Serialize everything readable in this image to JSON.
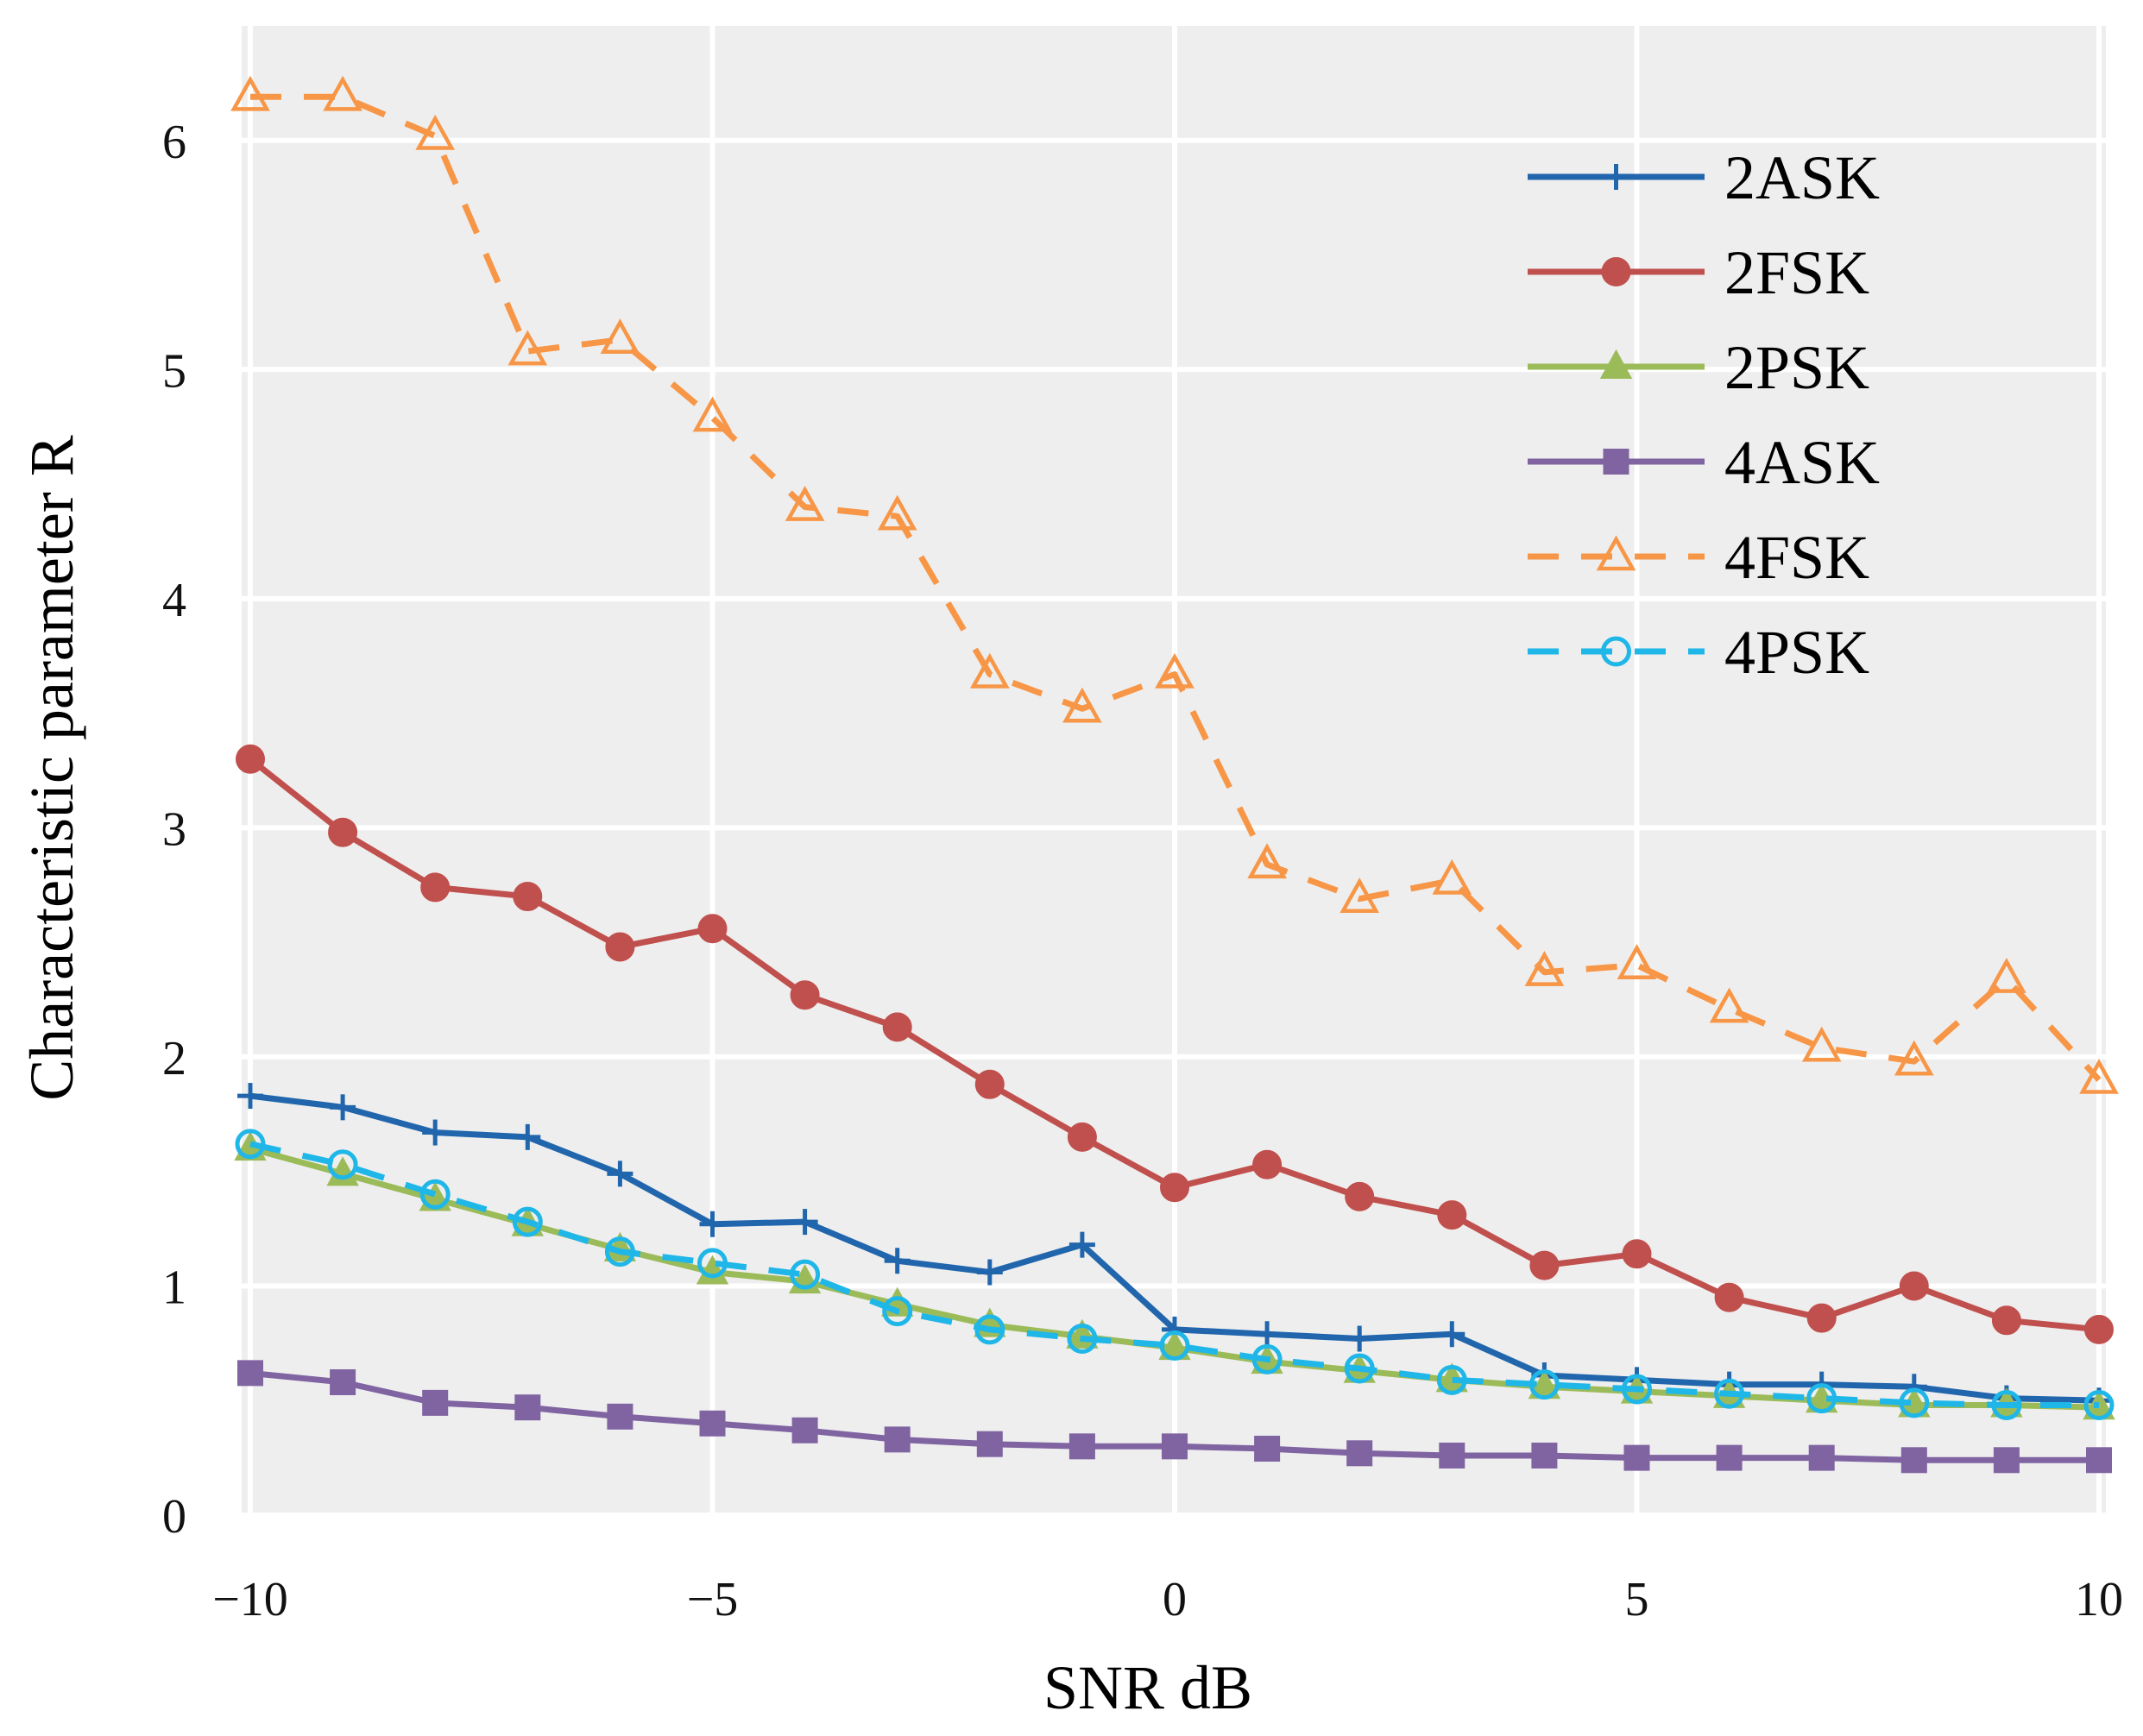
{
  "chart_data": {
    "type": "line",
    "title": "",
    "xlabel": "SNR  dB",
    "ylabel": "Characteristic parameter  R",
    "xlim": [
      -10,
      10
    ],
    "ylim": [
      0,
      6.5
    ],
    "xticks": [
      -10,
      -5,
      0,
      5,
      10
    ],
    "xtick_labels": [
      "−10",
      "−5",
      "0",
      "5",
      "10"
    ],
    "yticks": [
      0,
      1,
      2,
      3,
      4,
      5,
      6
    ],
    "ytick_labels": [
      "0",
      "1",
      "2",
      "3",
      "4",
      "5",
      "6"
    ],
    "grid": true,
    "legend_position": "top-right",
    "x": [
      -10,
      -9,
      -8,
      -7,
      -6,
      -5,
      -4,
      -3,
      -2,
      -1,
      0,
      1,
      2,
      3,
      4,
      5,
      6,
      7,
      8,
      9,
      10
    ],
    "series": [
      {
        "name": "2ASK",
        "color": "#2166ac",
        "line": "solid",
        "marker": "plus",
        "values": [
          1.83,
          1.78,
          1.67,
          1.65,
          1.49,
          1.27,
          1.28,
          1.11,
          1.06,
          1.18,
          0.81,
          0.79,
          0.77,
          0.79,
          0.61,
          0.59,
          0.57,
          0.57,
          0.56,
          0.51,
          0.5
        ]
      },
      {
        "name": "2FSK",
        "color": "#c0504d",
        "line": "solid",
        "marker": "circle",
        "values": [
          3.3,
          2.98,
          2.74,
          2.7,
          2.48,
          2.56,
          2.27,
          2.13,
          1.88,
          1.65,
          1.43,
          1.53,
          1.39,
          1.31,
          1.09,
          1.14,
          0.95,
          0.86,
          1.0,
          0.85,
          0.81
        ]
      },
      {
        "name": "2PSK",
        "color": "#9bbb59",
        "line": "solid",
        "marker": "triangle",
        "values": [
          1.6,
          1.49,
          1.38,
          1.27,
          1.16,
          1.06,
          1.02,
          0.92,
          0.83,
          0.78,
          0.73,
          0.67,
          0.63,
          0.59,
          0.56,
          0.54,
          0.52,
          0.5,
          0.48,
          0.48,
          0.47
        ]
      },
      {
        "name": "4ASK",
        "color": "#8064a2",
        "line": "solid",
        "marker": "square",
        "values": [
          0.62,
          0.58,
          0.49,
          0.47,
          0.43,
          0.4,
          0.37,
          0.33,
          0.31,
          0.3,
          0.3,
          0.29,
          0.27,
          0.26,
          0.26,
          0.25,
          0.25,
          0.25,
          0.24,
          0.24,
          0.24
        ]
      },
      {
        "name": "4FSK",
        "color": "#f79646",
        "line": "dashed",
        "marker": "triangle-open",
        "values": [
          6.19,
          6.19,
          6.02,
          5.08,
          5.13,
          4.79,
          4.4,
          4.36,
          3.67,
          3.52,
          3.67,
          2.84,
          2.69,
          2.77,
          2.37,
          2.4,
          2.21,
          2.04,
          1.98,
          2.34,
          1.9
        ]
      },
      {
        "name": "4PSK",
        "color": "#1fb6e8",
        "line": "dashed",
        "marker": "circle-open",
        "values": [
          1.62,
          1.53,
          1.4,
          1.28,
          1.15,
          1.1,
          1.05,
          0.89,
          0.81,
          0.77,
          0.74,
          0.68,
          0.64,
          0.59,
          0.57,
          0.55,
          0.53,
          0.51,
          0.49,
          0.48,
          0.48
        ]
      }
    ]
  }
}
